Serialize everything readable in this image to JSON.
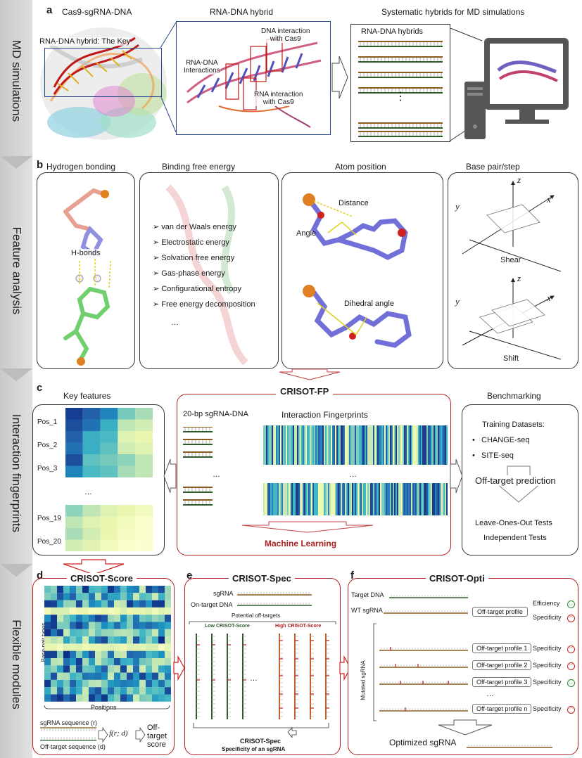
{
  "sidebar": {
    "labels": [
      "MD simulations",
      "Feature analysis",
      "Interaction fingerprints",
      "Flexible modules"
    ]
  },
  "panel_a": {
    "letter": "a",
    "titles": [
      "Cas9-sgRNA-DNA",
      "RNA-DNA hybrid",
      "Systematic hybrids for MD simulations"
    ],
    "key_label": "RNA-DNA hybrid: The Key",
    "rna_dna_interactions": "RNA-DNA\nInteractions",
    "dna_cas9": "DNA interaction\nwith Cas9",
    "rna_cas9": "RNA interaction\nwith Cas9",
    "hybrids_box_title": "RNA-DNA hybrids",
    "ellipsis": "⋮"
  },
  "panel_b": {
    "letter": "b",
    "titles": [
      "Hydrogen bonding",
      "Binding free energy",
      "Atom position",
      "Base pair/step"
    ],
    "hbonds": "H-bonds",
    "energy_items": [
      "van der Waals energy",
      "Electrostatic energy",
      "Solvation free energy",
      "Gas-phase energy",
      "Configurational entropy",
      "Free energy decomposition"
    ],
    "energy_more": "…",
    "atom_labels": [
      "Distance",
      "Angle",
      "Dihedral angle"
    ],
    "axes": [
      "z",
      "y",
      "x"
    ],
    "bp_labels": [
      "Shear",
      "Shift"
    ]
  },
  "panel_c": {
    "letter": "c",
    "key_features_title": "Key features",
    "positions": [
      "Pos_1",
      "Pos_2",
      "Pos_3",
      "Pos_19",
      "Pos_20"
    ],
    "ellipsis": "…",
    "fp_title": "CRISOT-FP",
    "sgrna_dna": "20-bp sgRNA-DNA",
    "fingerprints": "Interaction Fingerprints",
    "ml": "Machine Learning",
    "benchmark_title": "Benchmarking",
    "training": "Training Datasets:",
    "datasets": [
      "CHANGE-seq",
      "SITE-seq"
    ],
    "offtarget": "Off-target prediction",
    "tests": [
      "Leave-Ones-Out Tests",
      "Independent Tests"
    ]
  },
  "panel_d": {
    "letter": "d",
    "title": "CRISOT-Score",
    "ylabel": "Base-pair types",
    "xlabel": "Positions",
    "sgrna_seq": "sgRNA sequence (r)",
    "off_seq": "Off-target sequence (d)",
    "func": "f(r; d)",
    "score": "Off-target\nscore"
  },
  "panel_e": {
    "letter": "e",
    "title": "CRISOT-Spec",
    "sgrna": "sgRNA",
    "ontarget": "On-target DNA",
    "potential": "Potential off-targets",
    "low": "Low CRISOT-Score",
    "high": "High CRISOT-Score",
    "ellipsis": "…",
    "spec_title": "CRISOT-Spec",
    "spec_sub": "Specificity of an sgRNA"
  },
  "panel_f": {
    "letter": "f",
    "title": "CRISOT-Opti",
    "target_dna": "Target DNA",
    "wt_sgrna": "WT sgRNA",
    "profile": "Off-target profile",
    "efficiency": "Efficiency",
    "specificity": "Specificity",
    "mutated": "Mutated sgRNA",
    "profiles": [
      "Off-target profile 1",
      "Off-target profile 2",
      "Off-target profile 3",
      "Off-target profile n"
    ],
    "ellipsis": "…",
    "optimized": "Optimized sgRNA"
  },
  "colors": {
    "red": "#b02020",
    "strand_green": "#2f5a2a",
    "strand_brown": "#8a5a1a"
  }
}
